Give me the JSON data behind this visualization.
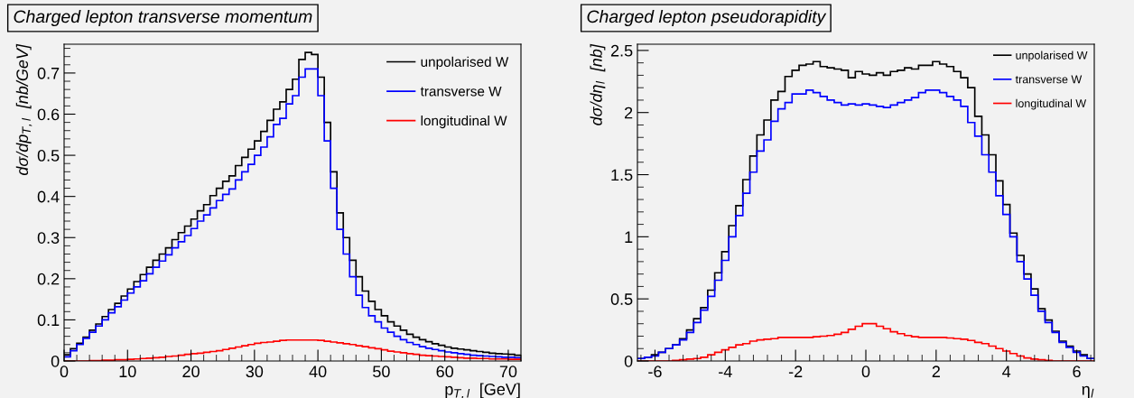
{
  "chart_data": [
    {
      "type": "histogram",
      "title": "Charged lepton transverse momentum",
      "xlabel": "p$_{T,l}$  [GeV]",
      "ylabel": "dσ/dp$_{T,l}$  [nb/GeV]",
      "bins": [
        0,
        1,
        2,
        3,
        4,
        5,
        6,
        7,
        8,
        9,
        10,
        11,
        12,
        13,
        14,
        15,
        16,
        17,
        18,
        19,
        20,
        21,
        22,
        23,
        24,
        25,
        26,
        27,
        28,
        29,
        30,
        31,
        32,
        33,
        34,
        35,
        36,
        37,
        38,
        39,
        40,
        41,
        42,
        43,
        44,
        45,
        46,
        47,
        48,
        49,
        50,
        51,
        52,
        53,
        54,
        55,
        56,
        57,
        58,
        59,
        60,
        61,
        62,
        63,
        64,
        65,
        66,
        67,
        68,
        69,
        70,
        71,
        72
      ],
      "series": [
        {
          "name": "unpolarised W",
          "color": "#000000",
          "values": [
            0.015,
            0.03,
            0.043,
            0.058,
            0.075,
            0.09,
            0.108,
            0.125,
            0.14,
            0.158,
            0.175,
            0.193,
            0.21,
            0.228,
            0.245,
            0.26,
            0.275,
            0.295,
            0.312,
            0.328,
            0.345,
            0.365,
            0.38,
            0.402,
            0.42,
            0.437,
            0.45,
            0.475,
            0.495,
            0.515,
            0.535,
            0.558,
            0.585,
            0.612,
            0.63,
            0.66,
            0.685,
            0.733,
            0.75,
            0.745,
            0.69,
            0.58,
            0.46,
            0.36,
            0.3,
            0.245,
            0.205,
            0.17,
            0.145,
            0.125,
            0.11,
            0.095,
            0.085,
            0.075,
            0.065,
            0.058,
            0.052,
            0.047,
            0.042,
            0.038,
            0.034,
            0.031,
            0.029,
            0.027,
            0.025,
            0.023,
            0.021,
            0.019,
            0.018,
            0.017,
            0.016,
            0.014
          ]
        },
        {
          "name": "transverse W",
          "color": "#0000ff",
          "values": [
            0.01,
            0.025,
            0.04,
            0.055,
            0.07,
            0.085,
            0.1,
            0.117,
            0.132,
            0.148,
            0.165,
            0.18,
            0.195,
            0.212,
            0.228,
            0.243,
            0.258,
            0.275,
            0.29,
            0.305,
            0.322,
            0.34,
            0.355,
            0.372,
            0.39,
            0.405,
            0.418,
            0.44,
            0.46,
            0.478,
            0.5,
            0.52,
            0.545,
            0.575,
            0.59,
            0.625,
            0.645,
            0.69,
            0.71,
            0.71,
            0.645,
            0.535,
            0.42,
            0.32,
            0.26,
            0.205,
            0.16,
            0.13,
            0.11,
            0.095,
            0.08,
            0.07,
            0.06,
            0.052,
            0.045,
            0.04,
            0.035,
            0.031,
            0.028,
            0.025,
            0.022,
            0.02,
            0.018,
            0.016,
            0.014,
            0.013,
            0.012,
            0.011,
            0.01,
            0.009,
            0.009,
            0.008
          ]
        },
        {
          "name": "longitudinal W",
          "color": "#ff0000",
          "values": [
            0,
            0,
            0,
            0,
            0.001,
            0.001,
            0.002,
            0.002,
            0.003,
            0.003,
            0.004,
            0.005,
            0.006,
            0.007,
            0.008,
            0.009,
            0.011,
            0.012,
            0.014,
            0.016,
            0.018,
            0.019,
            0.021,
            0.023,
            0.025,
            0.028,
            0.031,
            0.034,
            0.037,
            0.04,
            0.043,
            0.045,
            0.046,
            0.048,
            0.05,
            0.051,
            0.051,
            0.051,
            0.051,
            0.051,
            0.05,
            0.048,
            0.046,
            0.044,
            0.042,
            0.04,
            0.037,
            0.035,
            0.032,
            0.03,
            0.027,
            0.024,
            0.022,
            0.02,
            0.018,
            0.016,
            0.014,
            0.013,
            0.012,
            0.011,
            0.01,
            0.009,
            0.008,
            0.007,
            0.007,
            0.006,
            0.006,
            0.005,
            0.005,
            0.005,
            0.004,
            0.004
          ]
        }
      ],
      "xlim": [
        0,
        72
      ],
      "ylim": [
        0,
        0.77
      ],
      "xticks": [
        0,
        10,
        20,
        30,
        40,
        50,
        60,
        70
      ],
      "yticks": [
        0,
        0.1,
        0.2,
        0.3,
        0.4,
        0.5,
        0.6,
        0.7
      ],
      "legend": "top right",
      "grid": false
    },
    {
      "type": "histogram",
      "title": "Charged lepton pseudorapidity",
      "xlabel": "η$_{l}$",
      "ylabel": "dσ/dη$_{l}$  [nb]",
      "bins": [
        -6.5,
        -6.3,
        -6.1,
        -5.9,
        -5.7,
        -5.5,
        -5.3,
        -5.1,
        -4.9,
        -4.7,
        -4.5,
        -4.3,
        -4.1,
        -3.9,
        -3.7,
        -3.5,
        -3.3,
        -3.1,
        -2.9,
        -2.7,
        -2.5,
        -2.3,
        -2.1,
        -1.9,
        -1.7,
        -1.5,
        -1.3,
        -1.1,
        -0.9,
        -0.7,
        -0.5,
        -0.3,
        -0.1,
        0.1,
        0.3,
        0.5,
        0.7,
        0.9,
        1.1,
        1.3,
        1.5,
        1.7,
        1.9,
        2.1,
        2.3,
        2.5,
        2.7,
        2.9,
        3.1,
        3.3,
        3.5,
        3.7,
        3.9,
        4.1,
        4.3,
        4.5,
        4.7,
        4.9,
        5.1,
        5.3,
        5.5,
        5.7,
        5.9,
        6.1,
        6.3,
        6.5
      ],
      "series": [
        {
          "name": "unpolarised W",
          "color": "#000000",
          "values": [
            0.02,
            0.03,
            0.05,
            0.07,
            0.1,
            0.13,
            0.18,
            0.25,
            0.34,
            0.43,
            0.57,
            0.71,
            0.88,
            1.09,
            1.25,
            1.46,
            1.65,
            1.82,
            1.94,
            2.1,
            2.17,
            2.29,
            2.34,
            2.38,
            2.39,
            2.41,
            2.37,
            2.36,
            2.35,
            2.34,
            2.28,
            2.33,
            2.31,
            2.3,
            2.32,
            2.3,
            2.33,
            2.34,
            2.36,
            2.35,
            2.38,
            2.38,
            2.41,
            2.39,
            2.37,
            2.33,
            2.28,
            2.2,
            1.97,
            1.82,
            1.66,
            1.45,
            1.26,
            1.03,
            0.85,
            0.7,
            0.58,
            0.42,
            0.33,
            0.24,
            0.16,
            0.12,
            0.08,
            0.05,
            0.02
          ]
        },
        {
          "name": "transverse W",
          "color": "#0000ff",
          "values": [
            0.02,
            0.03,
            0.04,
            0.07,
            0.1,
            0.13,
            0.17,
            0.23,
            0.31,
            0.41,
            0.52,
            0.65,
            0.81,
            1.0,
            1.17,
            1.35,
            1.52,
            1.69,
            1.78,
            1.93,
            2.03,
            2.08,
            2.15,
            2.15,
            2.18,
            2.16,
            2.13,
            2.1,
            2.08,
            2.06,
            2.07,
            2.06,
            2.07,
            2.06,
            2.05,
            2.04,
            2.06,
            2.08,
            2.1,
            2.12,
            2.16,
            2.18,
            2.18,
            2.16,
            2.13,
            2.1,
            2.05,
            1.92,
            1.81,
            1.66,
            1.52,
            1.33,
            1.18,
            1.0,
            0.8,
            0.66,
            0.53,
            0.4,
            0.31,
            0.23,
            0.15,
            0.11,
            0.07,
            0.04,
            0.02
          ]
        },
        {
          "name": "longitudinal W",
          "color": "#ff0000",
          "values": [
            0,
            0,
            0,
            0,
            0,
            0.005,
            0.01,
            0.015,
            0.02,
            0.03,
            0.05,
            0.07,
            0.09,
            0.11,
            0.13,
            0.14,
            0.16,
            0.17,
            0.175,
            0.18,
            0.19,
            0.19,
            0.19,
            0.19,
            0.19,
            0.195,
            0.2,
            0.205,
            0.215,
            0.23,
            0.255,
            0.28,
            0.3,
            0.3,
            0.28,
            0.26,
            0.235,
            0.22,
            0.205,
            0.195,
            0.19,
            0.19,
            0.19,
            0.19,
            0.185,
            0.18,
            0.175,
            0.165,
            0.15,
            0.14,
            0.12,
            0.1,
            0.08,
            0.06,
            0.04,
            0.025,
            0.015,
            0.01,
            0.005,
            0,
            0,
            0,
            0,
            0,
            0
          ]
        }
      ],
      "xlim": [
        -6.5,
        6.5
      ],
      "ylim": [
        0,
        2.55
      ],
      "xticks": [
        -6,
        -4,
        -2,
        0,
        2,
        4,
        6
      ],
      "yticks": [
        0,
        0.5,
        1,
        1.5,
        2,
        2.5
      ],
      "legend": "top right",
      "grid": false
    }
  ]
}
